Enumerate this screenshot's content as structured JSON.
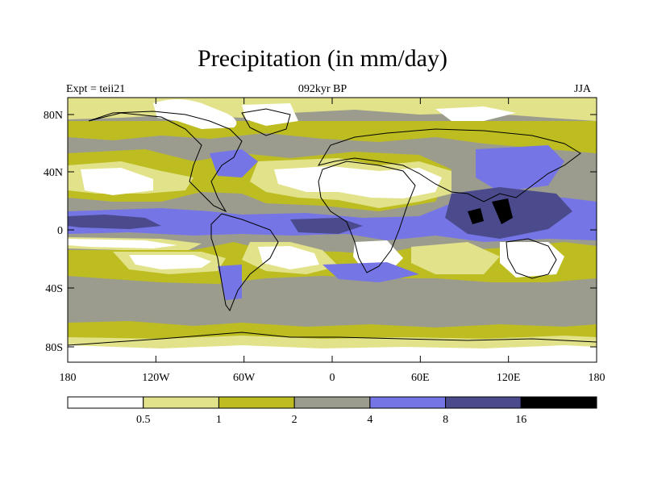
{
  "title": "Precipitation (in mm/day)",
  "subtitle": "092kyr BP",
  "left_label": "Expt = teii21",
  "right_label": "JJA",
  "lat_ticks": [
    "80N",
    "40N",
    "0",
    "40S",
    "80S"
  ],
  "lon_ticks": [
    "180",
    "120W",
    "60W",
    "0",
    "60E",
    "120E",
    "180"
  ],
  "colorbar": {
    "labels": [
      "0.5",
      "1",
      "2",
      "4",
      "8",
      "16"
    ],
    "colors": [
      "#ffffff",
      "#e2e28a",
      "#bdbd22",
      "#9c9c8e",
      "#7575e6",
      "#4a4a8c",
      "#000000"
    ]
  }
}
